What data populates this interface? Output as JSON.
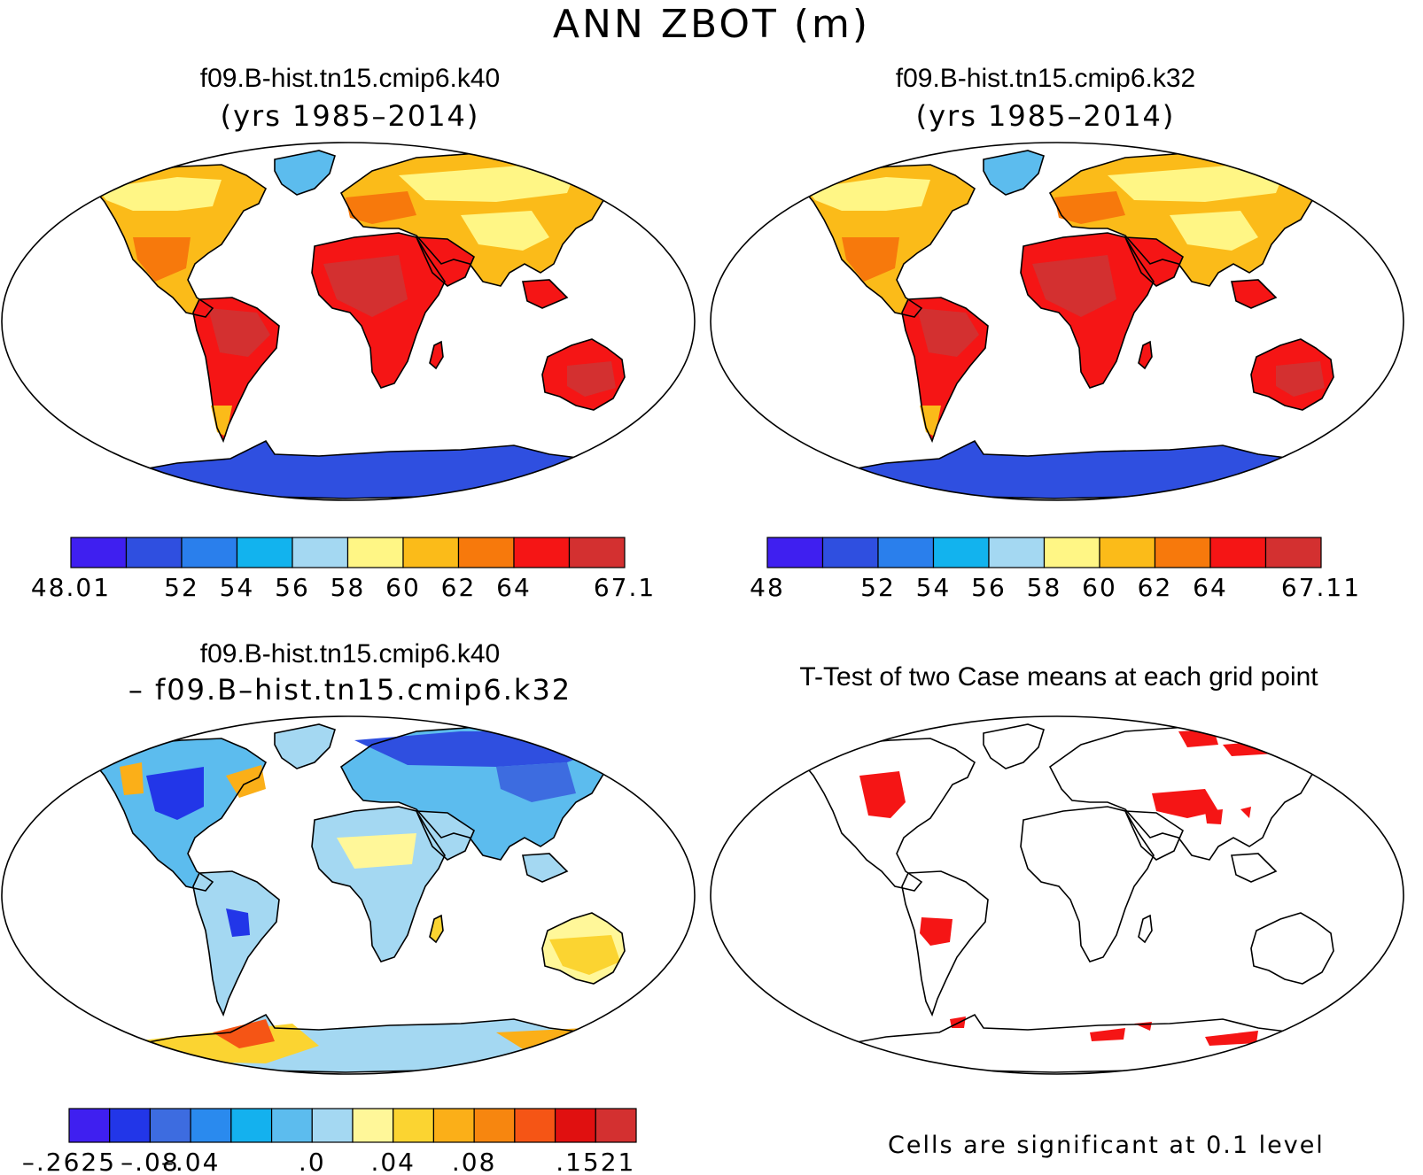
{
  "title": "ANN ZBOT (m)",
  "panels": {
    "top_left": {
      "title": "f09.B-hist.tn15.cmip6.k40",
      "subtitle": "(yrs 1985–2014)"
    },
    "top_right": {
      "title": "f09.B-hist.tn15.cmip6.k32",
      "subtitle": "(yrs 1985–2014)"
    },
    "bottom_left": {
      "title": "f09.B-hist.tn15.cmip6.k40",
      "subtitle": "– f09.B–hist.tn15.cmip6.k32"
    },
    "bottom_right": {
      "title": "T-Test of two Case means at each grid point",
      "note": "Cells are significant at 0.1 level"
    }
  },
  "colorbars": {
    "abs_left": {
      "colors": [
        "#3f1ff0",
        "#2f4fe0",
        "#2a7fec",
        "#12b3ee",
        "#a4d8f2",
        "#fff685",
        "#fbbb19",
        "#f7790c",
        "#f51515",
        "#d33030"
      ],
      "labels": [
        "48.01",
        "",
        "52",
        "54",
        "56",
        "58",
        "60",
        "62",
        "64",
        "",
        "67.1"
      ]
    },
    "abs_right": {
      "colors": [
        "#3f1ff0",
        "#2f4fe0",
        "#2a7fec",
        "#12b3ee",
        "#a4d8f2",
        "#fff685",
        "#fbbb19",
        "#f7790c",
        "#f51515",
        "#d33030"
      ],
      "labels": [
        "48",
        "",
        "52",
        "54",
        "56",
        "58",
        "60",
        "62",
        "64",
        "",
        "67.11"
      ]
    },
    "diff": {
      "colors": [
        "#3f1ff0",
        "#2236e8",
        "#3d6ce0",
        "#2a8aee",
        "#14b1ee",
        "#5cbcee",
        "#a4d8f2",
        "#fff799",
        "#fbd431",
        "#fbaf18",
        "#f7860f",
        "#f55515",
        "#e01010",
        "#d33030"
      ],
      "labels": [
        "–.2625",
        "",
        "–.08",
        "–.04",
        "",
        "",
        ".0",
        "",
        ".04",
        "",
        ".08",
        "",
        "",
        ".1521"
      ]
    }
  },
  "chart_data": [
    {
      "type": "map",
      "title": "f09.B-hist.tn15.cmip6.k40",
      "subtitle": "(yrs 1985–2014)",
      "range": [
        48.01,
        67.1
      ],
      "ticks": [
        48.01,
        52,
        54,
        56,
        58,
        60,
        62,
        64,
        67.1
      ]
    },
    {
      "type": "map",
      "title": "f09.B-hist.tn15.cmip6.k32",
      "subtitle": "(yrs 1985–2014)",
      "range": [
        48,
        67.11
      ],
      "ticks": [
        48,
        52,
        54,
        56,
        58,
        60,
        62,
        64,
        67.11
      ]
    },
    {
      "type": "map",
      "title": "f09.B-hist.tn15.cmip6.k40 – f09.B–hist.tn15.cmip6.k32",
      "range": [
        -0.2625,
        0.1521
      ],
      "ticks": [
        -0.2625,
        -0.08,
        -0.04,
        0.0,
        0.04,
        0.08,
        0.1521
      ]
    },
    {
      "type": "map",
      "title": "T-Test of two Case means at each grid point",
      "note": "Cells are significant at 0.1 level"
    }
  ]
}
